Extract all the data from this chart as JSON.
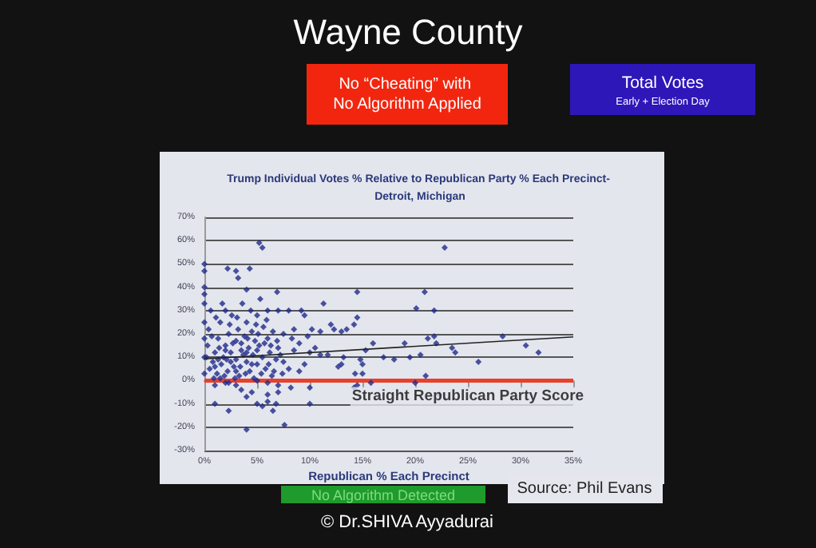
{
  "chart_data": {
    "type": "scatter",
    "title": "Wayne County",
    "subtitle": "Trump Individual Votes % Relative to Republican Party % Each Precinct- Detroit, Michigan",
    "xlabel": "Republican % Each Precinct",
    "annotations": [
      "No “Cheating” with No Algorithm Applied",
      "Total Votes",
      "Early + Election Day",
      "No Algorithm Detected",
      "Source: Phil Evans",
      "© Dr.SHIVA Ayyadurai",
      {
        "text": "Straight Republican Party Score",
        "x": 25,
        "y": 0
      }
    ],
    "series": [
      {
        "color": "#1f2a8a",
        "x": [
          5.2,
          5.5,
          0,
          0,
          2.2,
          3,
          3.2,
          4.3,
          4,
          0,
          0,
          6.9,
          14.5,
          22.8,
          20.1,
          20.9,
          21.8,
          21.2,
          21.8,
          19,
          16,
          22,
          23.5,
          23.8,
          28.3,
          30.5,
          31.7,
          26,
          18,
          19.5,
          17,
          20.5,
          15.3,
          14.5,
          14.2,
          13.5,
          11.3,
          9.2,
          9.5,
          12,
          12.3,
          11,
          13,
          8.5,
          10.2,
          9.8,
          8.3,
          7.5,
          10.5,
          11,
          11.7,
          13.2,
          13,
          12.7,
          14.8,
          15,
          14.3,
          15,
          15.8,
          14.5,
          14.2,
          20,
          21,
          22.3,
          10,
          7.6,
          4,
          6.5,
          2.3,
          1,
          5,
          5.5,
          6,
          6.8,
          4,
          4.5,
          3.5,
          7,
          6,
          8.2,
          10,
          9,
          8,
          7.5,
          9.5,
          10,
          8.5,
          9,
          7,
          6,
          8,
          1,
          2,
          3,
          5,
          6,
          7,
          0.5,
          0.8,
          1,
          1.2,
          1.3,
          1.5,
          1.6,
          1.8,
          2,
          2,
          2.2,
          2.3,
          2.5,
          2.6,
          2.8,
          3,
          3,
          3.2,
          3.3,
          3.5,
          3.6,
          3.8,
          4,
          4,
          4.2,
          4.3,
          4.5,
          4.6,
          4.8,
          5,
          5,
          5.2,
          5.3,
          5.5,
          5.6,
          5.8,
          6,
          6.2,
          6.4,
          6.5,
          6.8,
          7,
          0.3,
          0.4,
          0.6,
          0.9,
          1.1,
          1.4,
          1.7,
          1.9,
          2.1,
          2.4,
          2.7,
          2.9,
          3.1,
          3.4,
          3.7,
          3.9,
          4.1,
          4.4,
          4.7,
          4.9,
          5.1,
          5.4,
          5.7,
          5.9,
          6.1,
          6.3,
          6.6,
          6.9,
          7.2,
          7.4,
          0.2,
          0.7,
          1,
          1.3,
          2,
          2.5,
          3,
          3.5,
          4,
          4.5,
          5,
          1.5,
          2.3,
          0,
          0,
          0,
          0,
          0
        ],
        "values": [
          59,
          57,
          50,
          47,
          48,
          47,
          44,
          48,
          39,
          40,
          37,
          38,
          38,
          57,
          31,
          38,
          30,
          18,
          19,
          16,
          16,
          16,
          14,
          12,
          19,
          15,
          12,
          8,
          9,
          10,
          10,
          11,
          13,
          27,
          24,
          22,
          33,
          30,
          28,
          24,
          22,
          21,
          21,
          22,
          22,
          19,
          18,
          20,
          14,
          11,
          11,
          10,
          7,
          6,
          9,
          7,
          3,
          3,
          -1,
          -2,
          -3,
          -1,
          2,
          -6,
          -10,
          -19,
          -21,
          -13,
          -13,
          -10,
          -10,
          -11,
          -9,
          -10,
          -7,
          -5,
          -4,
          -5,
          -6,
          -3,
          -3,
          4,
          5,
          8,
          7,
          12,
          13,
          16,
          30,
          30,
          30,
          -2,
          -1,
          -2,
          0,
          -1,
          -2,
          5,
          8,
          12,
          3,
          18,
          25,
          7,
          10,
          15,
          30,
          4,
          20,
          12,
          28,
          6,
          17,
          9,
          22,
          2,
          13,
          33,
          19,
          8,
          25,
          14,
          4,
          21,
          11,
          17,
          7,
          28,
          15,
          35,
          10,
          23,
          5,
          18,
          12,
          2,
          21,
          9,
          14,
          15,
          22,
          30,
          1,
          27,
          14,
          33,
          2,
          9,
          24,
          16,
          1,
          27,
          6,
          11,
          3,
          18,
          30,
          1,
          24,
          20,
          3,
          16,
          26,
          7,
          15,
          4,
          17,
          11,
          3,
          10,
          19,
          6,
          9,
          13,
          8,
          4,
          16,
          12,
          7,
          13,
          1,
          -1,
          25,
          18,
          10,
          3,
          33
        ]
      },
      {
        "type": "line",
        "marker": "none",
        "color": "#222222",
        "x": [
          0,
          35
        ],
        "values": [
          9.3,
          18.7
        ]
      }
    ],
    "xlim": [
      0,
      35
    ],
    "xticks": [
      {
        "value": 0,
        "label": "0%"
      },
      {
        "value": 5,
        "label": "5%"
      },
      {
        "value": 10,
        "label": "10%"
      },
      {
        "value": 15,
        "label": "15%"
      },
      {
        "value": 20,
        "label": "20%"
      },
      {
        "value": 25,
        "label": "25%"
      },
      {
        "value": 30,
        "label": "30%"
      },
      {
        "value": 35,
        "label": "35%"
      }
    ],
    "ylim": [
      -30,
      70
    ],
    "yticks": [
      {
        "value": -30,
        "label": "-30%"
      },
      {
        "value": -20,
        "label": "-20%"
      },
      {
        "value": -10,
        "label": "-10%"
      },
      {
        "value": 0,
        "label": "0%"
      },
      {
        "value": 10,
        "label": "10%"
      },
      {
        "value": 20,
        "label": "20%"
      },
      {
        "value": 30,
        "label": "30%"
      },
      {
        "value": 40,
        "label": "40%"
      },
      {
        "value": 50,
        "label": "50%"
      },
      {
        "value": 60,
        "label": "60%"
      },
      {
        "value": 70,
        "label": "70%"
      }
    ],
    "ref_lines": [
      {
        "axis": "y",
        "value": 0,
        "color": "#e8412c"
      }
    ],
    "grid": "y",
    "marker": "diamond"
  }
}
